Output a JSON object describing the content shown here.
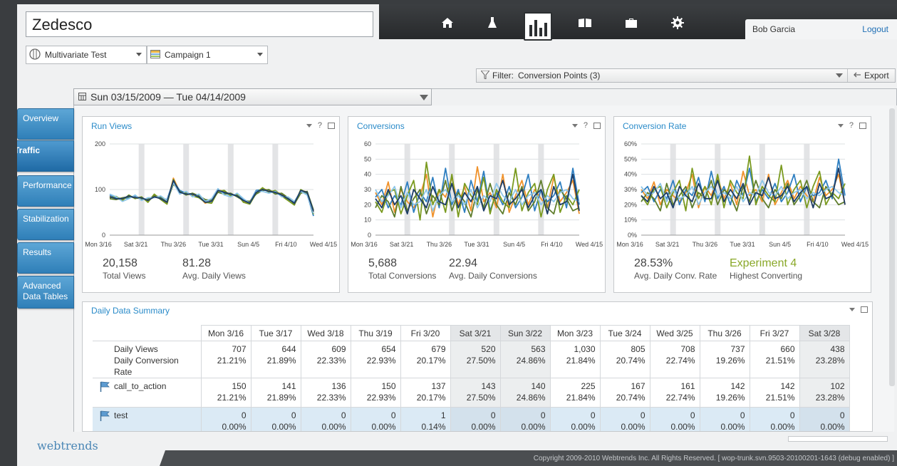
{
  "app": {
    "title": "Zedesco",
    "user": "Bob Garcia",
    "logout": "Logout",
    "nav": [
      "home-icon",
      "flask-icon",
      "reports-icon",
      "book-icon",
      "briefcase-icon",
      "gear-icon"
    ]
  },
  "selectors": {
    "test_type": "Multivariate Test",
    "campaign": "Campaign 1"
  },
  "filter": {
    "label": "Filter:",
    "value": "Conversion Points (3)",
    "export": "Export"
  },
  "date_range": "Sun 03/15/2009 — Tue 04/14/2009",
  "tabs": [
    "Overview",
    "Traffic",
    "Performance",
    "Stabilization",
    "Results",
    "Advanced Data Tables"
  ],
  "active_tab": "Traffic",
  "panels": [
    {
      "title": "Run Views",
      "stat1_value": "20,158",
      "stat1_label": "Total Views",
      "stat2_value": "81.28",
      "stat2_label": "Avg. Daily Views"
    },
    {
      "title": "Conversions",
      "stat1_value": "5,688",
      "stat1_label": "Total Conversions",
      "stat2_value": "22.94",
      "stat2_label": "Avg. Daily Conversions"
    },
    {
      "title": "Conversion Rate",
      "stat1_value": "28.53%",
      "stat1_label": "Avg. Daily Conv. Rate",
      "stat2_value": "Experiment 4",
      "stat2_label": "Highest Converting"
    }
  ],
  "chart_data": [
    {
      "type": "line",
      "title": "Run Views",
      "x_ticks": [
        "Mon 3/16",
        "Sat 3/21",
        "Thu 3/26",
        "Tue 3/31",
        "Sun 4/5",
        "Fri 4/10",
        "Wed 4/15"
      ],
      "y_ticks": [
        "0",
        "100",
        "200"
      ],
      "ylim": [
        0,
        200
      ],
      "series": [
        {
          "color": "#f0922b",
          "values": [
            85,
            80,
            78,
            85,
            84,
            82,
            75,
            88,
            80,
            70,
            125,
            95,
            90,
            88,
            85,
            70,
            75,
            100,
            95,
            90,
            85,
            75,
            70,
            95,
            102,
            98,
            95,
            90,
            80,
            70,
            98,
            95,
            50
          ]
        },
        {
          "color": "#2f7fc1",
          "values": [
            88,
            82,
            80,
            82,
            86,
            78,
            80,
            85,
            82,
            78,
            118,
            98,
            92,
            90,
            88,
            75,
            78,
            98,
            92,
            88,
            88,
            78,
            72,
            98,
            100,
            96,
            92,
            88,
            78,
            72,
            95,
            90,
            42
          ]
        },
        {
          "color": "#7a9a1f",
          "values": [
            82,
            85,
            76,
            88,
            80,
            84,
            72,
            90,
            78,
            68,
            122,
            92,
            94,
            86,
            82,
            72,
            70,
            96,
            98,
            86,
            90,
            72,
            68,
            92,
            104,
            94,
            98,
            86,
            76,
            66,
            100,
            92,
            46
          ]
        },
        {
          "color": "#5f7d2c",
          "values": [
            80,
            78,
            82,
            84,
            82,
            80,
            78,
            86,
            84,
            74,
            112,
            96,
            88,
            92,
            86,
            78,
            76,
            94,
            90,
            92,
            84,
            76,
            74,
            90,
            98,
            100,
            90,
            92,
            82,
            68,
            92,
            96,
            55
          ]
        },
        {
          "color": "#8ec6e8",
          "values": [
            90,
            84,
            74,
            80,
            88,
            76,
            82,
            82,
            86,
            76,
            115,
            90,
            96,
            84,
            90,
            74,
            80,
            102,
            88,
            84,
            92,
            80,
            70,
            96,
            96,
            92,
            96,
            84,
            84,
            74,
            96,
            88,
            48
          ]
        },
        {
          "color": "#1e3d66",
          "values": [
            84,
            80,
            80,
            86,
            82,
            82,
            76,
            84,
            80,
            72,
            120,
            94,
            90,
            90,
            84,
            72,
            74,
            98,
            94,
            90,
            86,
            76,
            70,
            94,
            100,
            96,
            94,
            88,
            80,
            70,
            98,
            94,
            52
          ]
        }
      ]
    },
    {
      "type": "line",
      "title": "Conversions",
      "x_ticks": [
        "Mon 3/16",
        "Sat 3/21",
        "Thu 3/26",
        "Tue 3/31",
        "Sun 4/5",
        "Fri 4/10",
        "Wed 4/15"
      ],
      "y_ticks": [
        "0",
        "10",
        "20",
        "30",
        "40",
        "50",
        "60"
      ],
      "ylim": [
        0,
        60
      ],
      "series": [
        {
          "color": "#f0922b",
          "values": [
            28,
            20,
            35,
            15,
            30,
            22,
            18,
            26,
            40,
            12,
            30,
            25,
            38,
            20,
            32,
            16,
            45,
            22,
            28,
            18,
            40,
            15,
            26,
            36,
            20,
            30,
            24,
            18,
            38,
            22,
            28,
            36,
            14
          ]
        },
        {
          "color": "#2f7fc1",
          "values": [
            25,
            30,
            18,
            26,
            20,
            35,
            15,
            28,
            22,
            38,
            18,
            44,
            20,
            30,
            15,
            36,
            22,
            42,
            16,
            28,
            20,
            32,
            18,
            25,
            40,
            16,
            30,
            22,
            26,
            35,
            18,
            44,
            20
          ]
        },
        {
          "color": "#7a9a1f",
          "values": [
            22,
            15,
            28,
            30,
            14,
            26,
            36,
            10,
            48,
            20,
            30,
            15,
            40,
            12,
            34,
            26,
            20,
            38,
            14,
            30,
            22,
            18,
            44,
            16,
            28,
            34,
            12,
            30,
            40,
            15,
            26,
            20,
            30
          ]
        },
        {
          "color": "#5f7d2c",
          "values": [
            18,
            26,
            22,
            12,
            32,
            16,
            24,
            30,
            14,
            26,
            20,
            36,
            16,
            28,
            22,
            12,
            30,
            18,
            34,
            20,
            14,
            28,
            20,
            32,
            16,
            22,
            36,
            18,
            14,
            30,
            24,
            16,
            18
          ]
        },
        {
          "color": "#8ec6e8",
          "values": [
            30,
            22,
            26,
            32,
            18,
            28,
            20,
            22,
            30,
            16,
            26,
            30,
            22,
            26,
            20,
            30,
            18,
            26,
            22,
            34,
            26,
            22,
            30,
            20,
            26,
            28,
            20,
            26,
            22,
            28,
            30,
            24,
            22
          ]
        },
        {
          "color": "#1e3d66",
          "values": [
            24,
            18,
            30,
            20,
            26,
            14,
            30,
            24,
            18,
            32,
            22,
            20,
            34,
            18,
            28,
            22,
            32,
            16,
            26,
            24,
            36,
            20,
            24,
            30,
            18,
            26,
            30,
            14,
            32,
            20,
            22,
            40,
            16
          ]
        }
      ]
    },
    {
      "type": "line",
      "title": "Conversion Rate",
      "x_ticks": [
        "Mon 3/16",
        "Sat 3/21",
        "Thu 3/26",
        "Tue 3/31",
        "Sun 4/5",
        "Fri 4/10",
        "Wed 4/15"
      ],
      "y_ticks": [
        "0%",
        "10%",
        "20%",
        "30%",
        "40%",
        "50%",
        "60%"
      ],
      "ylim": [
        0,
        60
      ],
      "series": [
        {
          "color": "#f0922b",
          "values": [
            30,
            24,
            35,
            20,
            30,
            26,
            22,
            28,
            40,
            18,
            32,
            26,
            38,
            24,
            34,
            20,
            42,
            26,
            30,
            22,
            40,
            20,
            28,
            36,
            24,
            32,
            26,
            22,
            38,
            26,
            30,
            40,
            20
          ]
        },
        {
          "color": "#2f7fc1",
          "values": [
            28,
            32,
            22,
            30,
            24,
            36,
            20,
            30,
            26,
            38,
            22,
            42,
            24,
            32,
            20,
            36,
            26,
            44,
            22,
            30,
            24,
            34,
            22,
            28,
            40,
            22,
            32,
            26,
            28,
            36,
            24,
            50,
            26
          ]
        },
        {
          "color": "#7a9a1f",
          "values": [
            26,
            20,
            30,
            32,
            18,
            28,
            36,
            16,
            44,
            24,
            32,
            20,
            40,
            18,
            36,
            28,
            24,
            52,
            20,
            32,
            26,
            22,
            46,
            20,
            30,
            36,
            18,
            32,
            42,
            20,
            28,
            24,
            34
          ]
        },
        {
          "color": "#5f7d2c",
          "values": [
            22,
            28,
            24,
            16,
            34,
            20,
            26,
            32,
            18,
            28,
            24,
            36,
            20,
            30,
            26,
            16,
            32,
            22,
            36,
            24,
            18,
            30,
            24,
            34,
            20,
            26,
            36,
            22,
            18,
            32,
            26,
            20,
            22
          ]
        },
        {
          "color": "#8ec6e8",
          "values": [
            32,
            26,
            28,
            34,
            22,
            30,
            24,
            26,
            32,
            20,
            28,
            32,
            26,
            28,
            24,
            32,
            22,
            28,
            26,
            36,
            28,
            26,
            32,
            24,
            28,
            30,
            24,
            28,
            26,
            30,
            32,
            28,
            26
          ]
        },
        {
          "color": "#1e3d66",
          "values": [
            26,
            22,
            32,
            24,
            28,
            18,
            32,
            26,
            22,
            34,
            24,
            24,
            36,
            22,
            30,
            24,
            34,
            20,
            28,
            26,
            38,
            24,
            26,
            32,
            22,
            28,
            32,
            18,
            34,
            24,
            26,
            44,
            20
          ]
        }
      ]
    }
  ],
  "summary": {
    "title": "Daily Data Summary",
    "columns": [
      "Mon 3/16",
      "Tue 3/17",
      "Wed 3/18",
      "Thu 3/19",
      "Fri 3/20",
      "Sat 3/21",
      "Sun 3/22",
      "Mon 3/23",
      "Tue 3/24",
      "Wed 3/25",
      "Thu 3/26",
      "Fri 3/27",
      "Sat 3/28"
    ],
    "weekend": [
      false,
      false,
      false,
      false,
      false,
      true,
      true,
      false,
      false,
      false,
      false,
      false,
      true
    ],
    "rows": [
      {
        "label1": "Daily Views",
        "label2": "Daily Conversion Rate",
        "flag": false,
        "highlight": false,
        "line1": [
          "707",
          "644",
          "609",
          "654",
          "679",
          "520",
          "563",
          "1,030",
          "805",
          "708",
          "737",
          "660",
          "438"
        ],
        "line2": [
          "21.21%",
          "21.89%",
          "22.33%",
          "22.93%",
          "20.17%",
          "27.50%",
          "24.86%",
          "21.84%",
          "20.74%",
          "22.74%",
          "19.26%",
          "21.51%",
          "23.28%"
        ]
      },
      {
        "label1": "call_to_action",
        "label2": "",
        "flag": true,
        "highlight": false,
        "line1": [
          "150",
          "141",
          "136",
          "150",
          "137",
          "143",
          "140",
          "225",
          "167",
          "161",
          "142",
          "142",
          "102"
        ],
        "line2": [
          "21.21%",
          "21.89%",
          "22.33%",
          "22.93%",
          "20.17%",
          "27.50%",
          "24.86%",
          "21.84%",
          "20.74%",
          "22.74%",
          "19.26%",
          "21.51%",
          "23.28%"
        ]
      },
      {
        "label1": "test",
        "label2": "",
        "flag": true,
        "highlight": true,
        "line1": [
          "0",
          "0",
          "0",
          "0",
          "1",
          "0",
          "0",
          "0",
          "0",
          "0",
          "0",
          "0",
          "0"
        ],
        "line2": [
          "0.00%",
          "0.00%",
          "0.00%",
          "0.00%",
          "0.14%",
          "0.00%",
          "0.00%",
          "0.00%",
          "0.00%",
          "0.00%",
          "0.00%",
          "0.00%",
          "0.00%"
        ]
      }
    ]
  },
  "footer": {
    "logo": "webtrends",
    "copyright": "Copyright 2009-2010 Webtrends Inc. All Rights Reserved.  [ wop-trunk.svn.9503-20100201-1643 (debug enabled) ]"
  }
}
